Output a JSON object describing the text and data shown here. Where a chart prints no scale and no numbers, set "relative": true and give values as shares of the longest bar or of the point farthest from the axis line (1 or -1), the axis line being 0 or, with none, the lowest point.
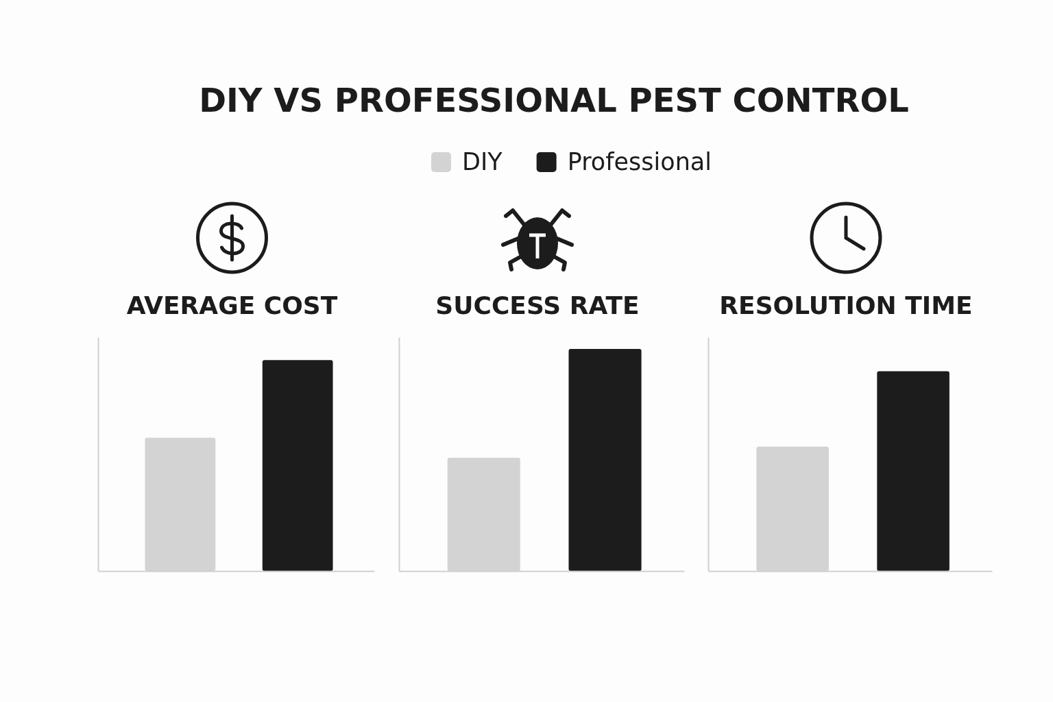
{
  "chart_data": {
    "type": "bar",
    "title": "DIY VS PROFESSIONAL PEST CONTROL",
    "categories": [
      "AVERAGE COST",
      "SUCCESS RATE",
      "RESOLUTION TIME"
    ],
    "relative": true,
    "legend": "top",
    "grid": true,
    "series": [
      {
        "name": "DIY",
        "color": "#d3d3d3",
        "values": [
          0.6,
          0.51,
          0.56
        ]
      },
      {
        "name": "Professional",
        "color": "#1c1c1c",
        "values": [
          0.95,
          1,
          0.9
        ]
      }
    ]
  }
}
